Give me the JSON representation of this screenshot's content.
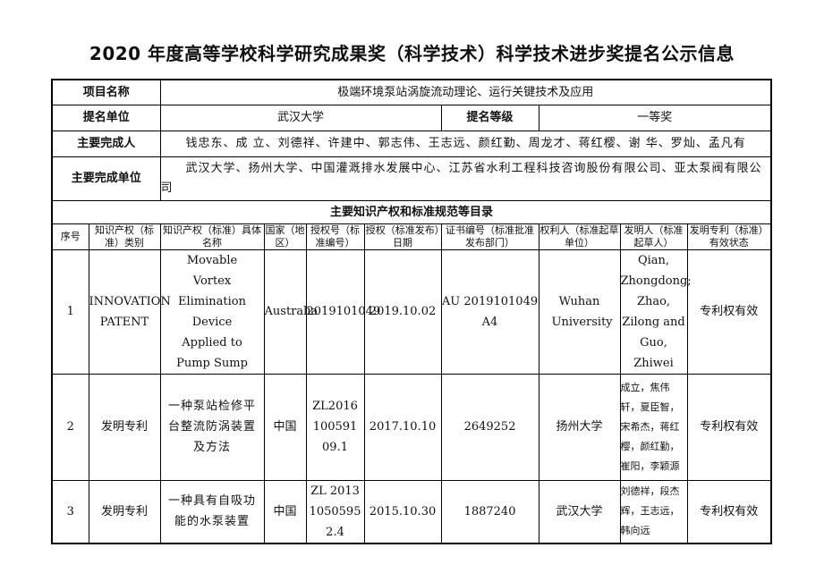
{
  "title": "2020 年度高等学校科学研究成果奖（科学技术）科学技术进步奖提名公示信息",
  "project": {
    "label": "项目名称",
    "value": "极端环境泵站涡旋流动理论、运行关键技术及应用"
  },
  "nominator": {
    "label": "提名单位",
    "value": "武汉大学",
    "level_label": "提名等级",
    "level_value": "一等奖"
  },
  "persons": {
    "label": "主要完成人",
    "value": "钱忠东、成 立、刘德祥、许建中、郭志伟、王志远、颜红勤、周龙才、蒋红樱、谢 华、罗灿、孟凡有"
  },
  "units": {
    "label": "主要完成单位",
    "value": "武汉大学、扬州大学、中国灌溉排水发展中心、江苏省水利工程科技咨询股份有限公司、亚太泵阀有限公司"
  },
  "ip_section": {
    "title": "主要知识产权和标准规范等目录",
    "headers": [
      "序号",
      "知识产权（标准）类别",
      "知识产权（标准）具体名称",
      "国家（地区）",
      "授权号（标准编号）",
      "授权（标准发布）日期",
      "证书编号（标准批准发布部门）",
      "权利人（标准起草单位）",
      "发明人（标准起草人）",
      "发明专利（标准）有效状态"
    ],
    "rows": [
      [
        "1",
        "INNOVATION PATENT",
        "Movable Vortex Elimination Device Applied to Pump Sump",
        "Australia",
        "2019101049",
        "2019.10.02",
        "AU 2019101049 A4",
        "Wuhan University",
        "Qian, Zhongdong; Zhao, Zilong and Guo, Zhiwei",
        "专利权有效"
      ],
      [
        "2",
        "发明专利",
        "一种泵站检修平台整流防涡装置及方法",
        "中国",
        "ZL201610059109.1",
        "2017.10.10",
        "2649252",
        "扬州大学",
        "成立，焦伟轩，夏臣智，宋希杰，蒋红樱，颜红勤，崔阳，李颖源",
        "专利权有效"
      ],
      [
        "3",
        "发明专利",
        "一种具有自吸功能的水泵装置",
        "中国",
        "ZL 201310505952.4",
        "2015.10.30",
        "1887240",
        "武汉大学",
        "刘德祥，段杰辉，王志远，韩向远",
        "专利权有效"
      ]
    ]
  }
}
